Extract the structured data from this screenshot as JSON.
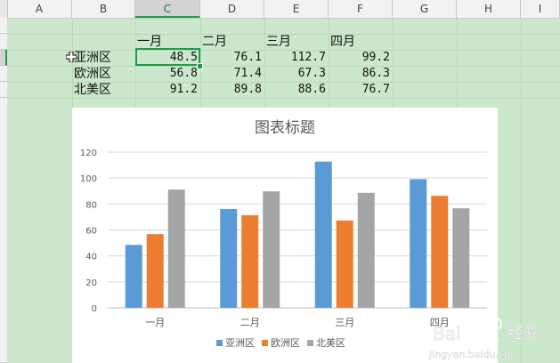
{
  "columns": [
    {
      "label": "A"
    },
    {
      "label": "B"
    },
    {
      "label": "C"
    },
    {
      "label": "D"
    },
    {
      "label": "E"
    },
    {
      "label": "F"
    },
    {
      "label": "G"
    },
    {
      "label": "H"
    },
    {
      "label": "I"
    }
  ],
  "selected_column": "C",
  "table": {
    "months": [
      "一月",
      "二月",
      "三月",
      "四月"
    ],
    "rows": [
      {
        "region": "亚洲区",
        "values": [
          "48.5",
          "76.1",
          "112.7",
          "99.2"
        ]
      },
      {
        "region": "欧洲区",
        "values": [
          "56.8",
          "71.4",
          "67.3",
          "86.3"
        ]
      },
      {
        "region": "北美区",
        "values": [
          "91.2",
          "89.8",
          "88.6",
          "76.7"
        ]
      }
    ]
  },
  "chart_data": {
    "type": "bar",
    "title": "图表标题",
    "categories": [
      "一月",
      "二月",
      "三月",
      "四月"
    ],
    "series": [
      {
        "name": "亚洲区",
        "values": [
          48.5,
          76.1,
          112.7,
          99.2
        ],
        "color": "#5b9bd5"
      },
      {
        "name": "欧洲区",
        "values": [
          56.8,
          71.4,
          67.3,
          86.3
        ],
        "color": "#ed7d31"
      },
      {
        "name": "北美区",
        "values": [
          91.2,
          89.8,
          88.6,
          76.7
        ],
        "color": "#a5a5a5"
      }
    ],
    "ylim": [
      0,
      120
    ],
    "yticks": [
      "0",
      "20",
      "40",
      "60",
      "80",
      "100",
      "120"
    ],
    "grid": true,
    "legend_position": "bottom"
  },
  "watermark": {
    "brand": "Bai",
    "site": "jingyan.baidu.com",
    "label": "经验"
  }
}
